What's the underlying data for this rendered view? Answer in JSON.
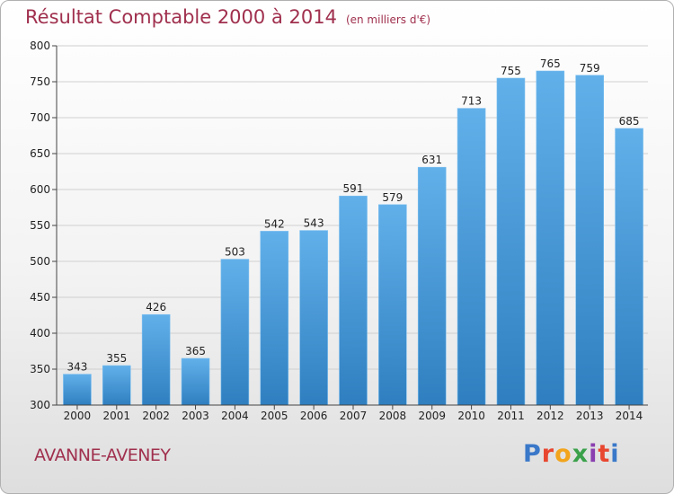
{
  "header": {
    "title": "Résultat Comptable 2000 à 2014",
    "unit": "(en milliers d'€)"
  },
  "footer": {
    "commune": "AVANNE-AVENEY",
    "brand": "Proxiti"
  },
  "colors": {
    "title": "#a0304e",
    "bar_top": "#62b0ea",
    "bar_bottom": "#2f7fc0",
    "grid": "#d0d0d0"
  },
  "chart_data": {
    "type": "bar",
    "title": "Résultat Comptable 2000 à 2014",
    "subtitle": "(en milliers d'€)",
    "categories": [
      "2000",
      "2001",
      "2002",
      "2003",
      "2004",
      "2005",
      "2006",
      "2007",
      "2008",
      "2009",
      "2010",
      "2011",
      "2012",
      "2013",
      "2014"
    ],
    "values": [
      343,
      355,
      426,
      365,
      503,
      542,
      543,
      591,
      579,
      631,
      713,
      755,
      765,
      759,
      685
    ],
    "ylim": [
      300,
      800
    ],
    "yticks": [
      300,
      350,
      400,
      450,
      500,
      550,
      600,
      650,
      700,
      750,
      800
    ],
    "grid": true,
    "data_labels": true
  }
}
